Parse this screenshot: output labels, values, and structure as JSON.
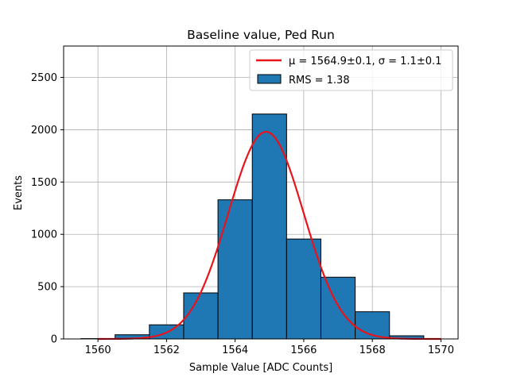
{
  "chart_data": {
    "type": "bar",
    "title": "Baseline value, Ped Run",
    "xlabel": "Sample Value [ADC Counts]",
    "ylabel": "Events",
    "xlim": [
      1559,
      1570.5
    ],
    "ylim": [
      0,
      2800
    ],
    "xticks": [
      1560,
      1562,
      1564,
      1566,
      1568,
      1570
    ],
    "yticks": [
      0,
      500,
      1000,
      1500,
      2000,
      2500
    ],
    "grid": true,
    "legend_placement": "top-right",
    "bins": [
      {
        "x0": 1559.5,
        "x1": 1560.5,
        "value": 3
      },
      {
        "x0": 1560.5,
        "x1": 1561.5,
        "value": 40
      },
      {
        "x0": 1561.5,
        "x1": 1562.5,
        "value": 135
      },
      {
        "x0": 1562.5,
        "x1": 1563.5,
        "value": 440
      },
      {
        "x0": 1563.5,
        "x1": 1564.5,
        "value": 1330
      },
      {
        "x0": 1564.5,
        "x1": 1565.5,
        "value": 2150
      },
      {
        "x0": 1565.5,
        "x1": 1566.5,
        "value": 955
      },
      {
        "x0": 1566.5,
        "x1": 1567.5,
        "value": 590
      },
      {
        "x0": 1567.5,
        "x1": 1568.5,
        "value": 260
      },
      {
        "x0": 1568.5,
        "x1": 1569.5,
        "value": 30
      }
    ],
    "fit": {
      "amplitude": 1980,
      "mu": 1564.9,
      "sigma": 1.1,
      "x_range": [
        1560,
        1570
      ]
    },
    "legend": {
      "fit_label": "μ = 1564.9±0.1, σ = 1.1±0.1",
      "hist_label": "RMS = 1.38"
    },
    "colors": {
      "bar_fill": "#1f77b4",
      "bar_edge": "#000000",
      "fit_line": "#e8141c",
      "grid": "#b0b0b0"
    }
  }
}
